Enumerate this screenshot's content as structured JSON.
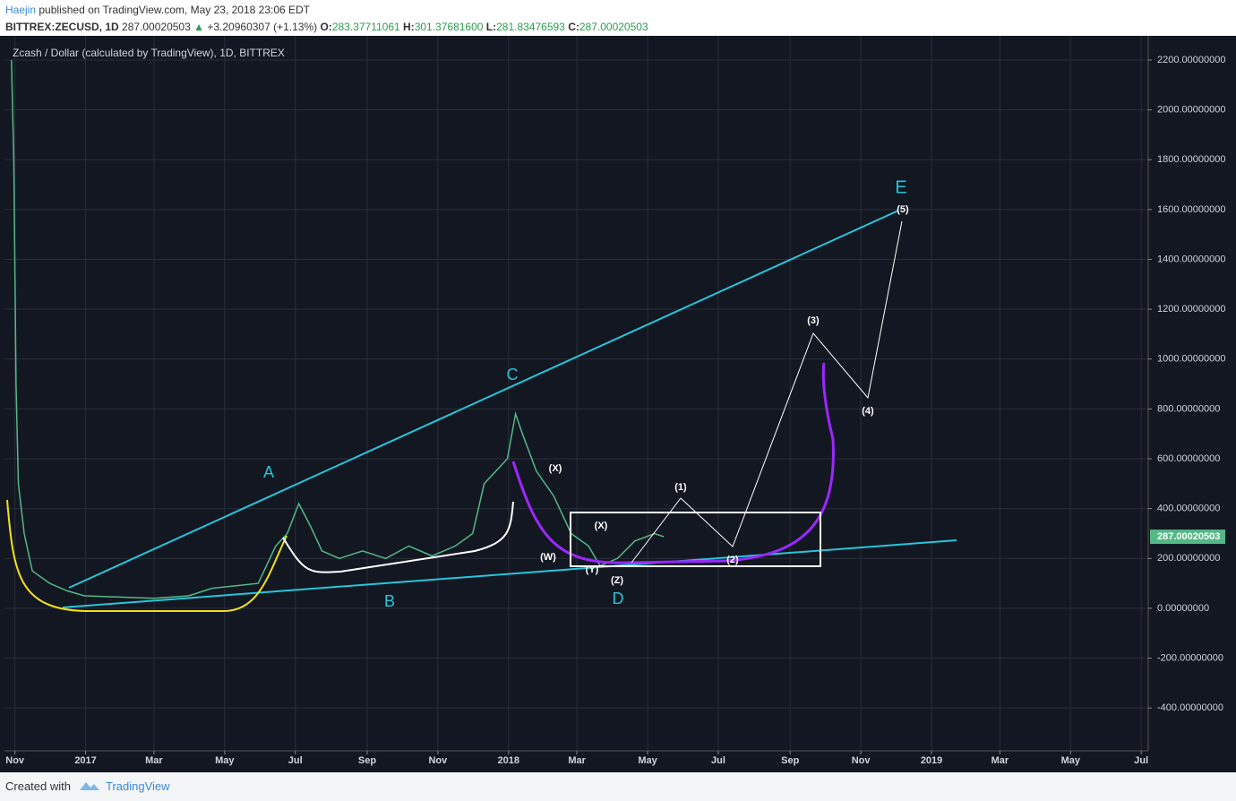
{
  "header": {
    "author": "Haejin",
    "published": "published on TradingView.com, May 23, 2018 23:06 EDT",
    "symbol": "BITTREX:ZECUSD, 1D",
    "price": "287.00020503",
    "change": "+3.20960307 (+1.13%)",
    "open_label": "O:",
    "open": "283.37711061",
    "high_label": "H:",
    "high": "301.37681600",
    "low_label": "L:",
    "low": "281.83476593",
    "close_label": "C:",
    "close": "287.00020503"
  },
  "footer": {
    "created": "Created with",
    "brand": "TradingView"
  },
  "chart_data": {
    "type": "line",
    "title": "Zcash / Dollar (calculated by TradingView), 1D, BITTREX",
    "series": [
      {
        "name": "ZECUSD",
        "color": "#53b987",
        "x": [
          -3,
          -1,
          1,
          3,
          8,
          15,
          30,
          45,
          60,
          90,
          120,
          150,
          170,
          190,
          210,
          225,
          235,
          245,
          255,
          265,
          280,
          300,
          320,
          340,
          360,
          380,
          395,
          405,
          415,
          425,
          432,
          438,
          450,
          465,
          480,
          495,
          505,
          520,
          535,
          552,
          560
        ],
        "values": [
          2200,
          1800,
          900,
          500,
          300,
          150,
          100,
          70,
          50,
          45,
          40,
          50,
          80,
          90,
          100,
          250,
          300,
          420,
          330,
          230,
          200,
          230,
          200,
          250,
          210,
          250,
          300,
          500,
          550,
          600,
          780,
          700,
          550,
          450,
          300,
          250,
          170,
          200,
          270,
          300,
          287
        ]
      }
    ],
    "last_price": 287.00020503,
    "annotations": [
      "A",
      "B",
      "C",
      "D",
      "E",
      "(X)",
      "(W)",
      "(X)",
      "(Y)",
      "(Z)",
      "(1)",
      "(2)",
      "(3)",
      "(4)",
      "(5)"
    ],
    "xlim": [
      -9,
      978
    ],
    "xticks": [
      {
        "value": 0,
        "label": "Nov"
      },
      {
        "value": 61,
        "label": "2017"
      },
      {
        "value": 120,
        "label": "Mar"
      },
      {
        "value": 181,
        "label": "May"
      },
      {
        "value": 242,
        "label": "Jul"
      },
      {
        "value": 304,
        "label": "Sep"
      },
      {
        "value": 365,
        "label": "Nov"
      },
      {
        "value": 426,
        "label": "2018"
      },
      {
        "value": 485,
        "label": "Mar"
      },
      {
        "value": 546,
        "label": "May"
      },
      {
        "value": 607,
        "label": "Jul"
      },
      {
        "value": 669,
        "label": "Sep"
      },
      {
        "value": 730,
        "label": "Nov"
      },
      {
        "value": 791,
        "label": "2019"
      },
      {
        "value": 850,
        "label": "Mar"
      },
      {
        "value": 911,
        "label": "May"
      },
      {
        "value": 972,
        "label": "Jul"
      }
    ],
    "ylim": [
      -572,
      2297
    ],
    "yticks": [
      {
        "value": -400,
        "label": "-400.00000000"
      },
      {
        "value": -200,
        "label": "-200.00000000"
      },
      {
        "value": 0,
        "label": "0.00000000"
      },
      {
        "value": 200,
        "label": "200.00000000"
      },
      {
        "value": 400,
        "label": "400.00000000"
      },
      {
        "value": 600,
        "label": "600.00000000"
      },
      {
        "value": 800,
        "label": "800.00000000"
      },
      {
        "value": 1000,
        "label": "1000.00000000"
      },
      {
        "value": 1200,
        "label": "1200.00000000"
      },
      {
        "value": 1400,
        "label": "1400.00000000"
      },
      {
        "value": 1600,
        "label": "1600.00000000"
      },
      {
        "value": 1800,
        "label": "1800.00000000"
      },
      {
        "value": 2000,
        "label": "2000.00000000"
      },
      {
        "value": 2200,
        "label": "2200.00000000"
      }
    ],
    "grid": true
  }
}
